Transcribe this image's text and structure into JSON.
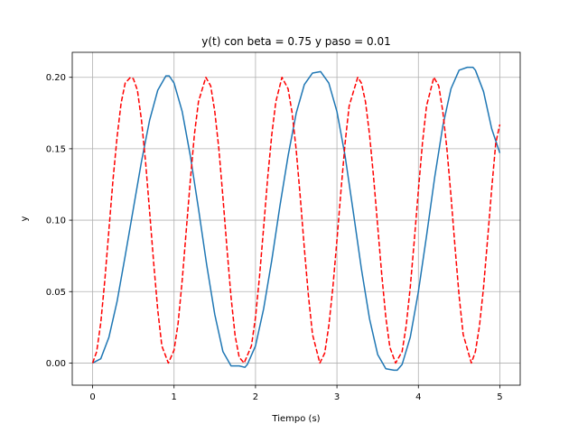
{
  "chart_data": {
    "type": "line",
    "title": "y(t) con beta = 0.75 y paso = 0.01",
    "xlabel": "Tiempo (s)",
    "ylabel": "y",
    "xlim": [
      -0.25,
      5.25
    ],
    "ylim": [
      -0.0155,
      0.2175
    ],
    "x_ticks": [
      0,
      1,
      2,
      3,
      4,
      5
    ],
    "x_tick_labels": [
      "0",
      "1",
      "2",
      "3",
      "4",
      "5"
    ],
    "y_ticks": [
      0.0,
      0.05,
      0.1,
      0.15,
      0.2
    ],
    "y_tick_labels": [
      "0.00",
      "0.05",
      "0.10",
      "0.15",
      "0.20"
    ],
    "grid": true,
    "series": [
      {
        "color": "#1f77b4",
        "line_style": "solid",
        "x": [
          0.0,
          0.1,
          0.2,
          0.3,
          0.4,
          0.5,
          0.6,
          0.7,
          0.8,
          0.9,
          0.94,
          1.0,
          1.1,
          1.2,
          1.3,
          1.4,
          1.5,
          1.6,
          1.7,
          1.8,
          1.87,
          1.9,
          2.0,
          2.1,
          2.2,
          2.3,
          2.4,
          2.5,
          2.6,
          2.7,
          2.8,
          2.9,
          3.0,
          3.1,
          3.2,
          3.3,
          3.4,
          3.5,
          3.6,
          3.7,
          3.74,
          3.8,
          3.9,
          4.0,
          4.1,
          4.2,
          4.3,
          4.4,
          4.5,
          4.6,
          4.67,
          4.7,
          4.8,
          4.9,
          5.0
        ],
        "y": [
          0.0,
          0.003,
          0.018,
          0.043,
          0.075,
          0.108,
          0.141,
          0.17,
          0.191,
          0.201,
          0.201,
          0.196,
          0.176,
          0.145,
          0.108,
          0.069,
          0.034,
          0.008,
          -0.002,
          -0.002,
          -0.003,
          -0.001,
          0.012,
          0.038,
          0.072,
          0.11,
          0.145,
          0.175,
          0.195,
          0.203,
          0.204,
          0.196,
          0.176,
          0.145,
          0.106,
          0.066,
          0.031,
          0.006,
          -0.004,
          -0.005,
          -0.005,
          -0.001,
          0.018,
          0.05,
          0.089,
          0.13,
          0.166,
          0.192,
          0.205,
          0.207,
          0.207,
          0.205,
          0.19,
          0.164,
          0.147
        ]
      },
      {
        "color": "#ff0000",
        "line_style": "dashed",
        "x": [
          0.0,
          0.05,
          0.1,
          0.15,
          0.2,
          0.25,
          0.3,
          0.35,
          0.4,
          0.465,
          0.5,
          0.55,
          0.6,
          0.65,
          0.7,
          0.75,
          0.8,
          0.85,
          0.93,
          1.0,
          1.05,
          1.1,
          1.15,
          1.2,
          1.25,
          1.3,
          1.39,
          1.45,
          1.5,
          1.55,
          1.6,
          1.65,
          1.7,
          1.75,
          1.8,
          1.86,
          1.95,
          2.0,
          2.05,
          2.1,
          2.15,
          2.2,
          2.25,
          2.325,
          2.4,
          2.45,
          2.5,
          2.55,
          2.6,
          2.65,
          2.7,
          2.79,
          2.85,
          2.9,
          2.95,
          3.0,
          3.05,
          3.1,
          3.15,
          3.255,
          3.3,
          3.35,
          3.4,
          3.45,
          3.5,
          3.55,
          3.6,
          3.65,
          3.72,
          3.8,
          3.85,
          3.9,
          3.95,
          4.0,
          4.05,
          4.1,
          4.19,
          4.25,
          4.3,
          4.35,
          4.4,
          4.45,
          4.5,
          4.55,
          4.65,
          4.7,
          4.75,
          4.8,
          4.85,
          4.9,
          4.95,
          5.0
        ],
        "y": [
          0.0,
          0.008,
          0.028,
          0.058,
          0.093,
          0.128,
          0.158,
          0.182,
          0.196,
          0.2,
          0.199,
          0.191,
          0.17,
          0.141,
          0.106,
          0.07,
          0.037,
          0.012,
          0.0,
          0.009,
          0.028,
          0.058,
          0.093,
          0.128,
          0.16,
          0.183,
          0.2,
          0.194,
          0.176,
          0.15,
          0.116,
          0.08,
          0.046,
          0.019,
          0.004,
          0.0,
          0.012,
          0.032,
          0.061,
          0.095,
          0.13,
          0.16,
          0.183,
          0.2,
          0.192,
          0.175,
          0.149,
          0.116,
          0.08,
          0.047,
          0.02,
          0.0,
          0.007,
          0.026,
          0.053,
          0.086,
          0.121,
          0.154,
          0.18,
          0.2,
          0.196,
          0.183,
          0.16,
          0.13,
          0.096,
          0.062,
          0.032,
          0.011,
          0.0,
          0.008,
          0.026,
          0.053,
          0.086,
          0.121,
          0.154,
          0.18,
          0.2,
          0.194,
          0.176,
          0.15,
          0.117,
          0.081,
          0.047,
          0.02,
          0.0,
          0.008,
          0.026,
          0.053,
          0.087,
          0.122,
          0.154,
          0.167
        ]
      }
    ]
  }
}
